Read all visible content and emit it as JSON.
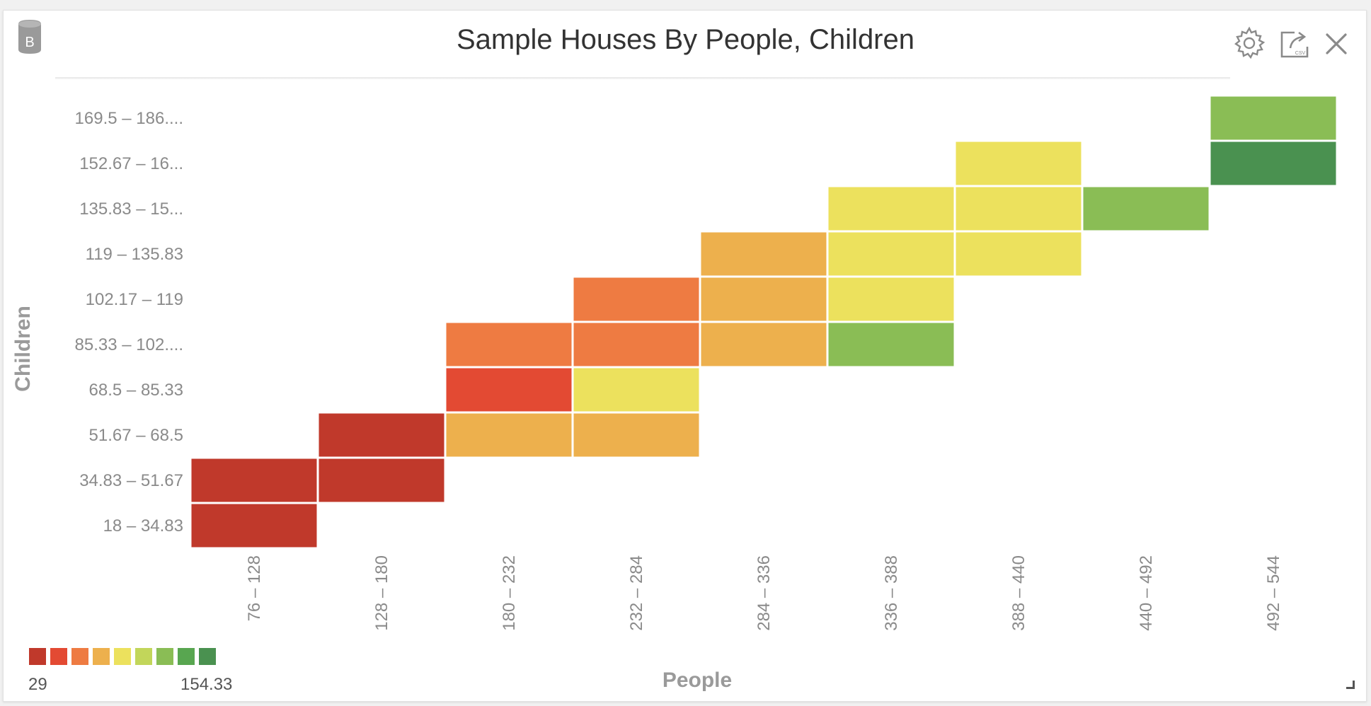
{
  "header": {
    "title": "Sample Houses By People, Children",
    "db_badge_letter": "B",
    "icons": [
      "database-icon",
      "gear-icon",
      "export-csv-icon",
      "close-icon"
    ],
    "export_badge": "CSV"
  },
  "chart_data": {
    "type": "heatmap",
    "title": "Sample Houses By People, Children",
    "xlabel": "People",
    "ylabel": "Children",
    "x_categories": [
      "76 – 128",
      "128 – 180",
      "180 – 232",
      "232 – 284",
      "284 – 336",
      "336 – 388",
      "388 – 440",
      "440 – 492",
      "492 – 544"
    ],
    "y_categories": [
      "18 – 34.83",
      "34.83 – 51.67",
      "51.67 – 68.5",
      "68.5 – 85.33",
      "85.33 – 102....",
      "102.17 – 119",
      "119 – 135.83",
      "135.83 – 15...",
      "152.67 – 16...",
      "169.5 – 186...."
    ],
    "cells": [
      {
        "x": 0,
        "y": 0,
        "value": 29
      },
      {
        "x": 0,
        "y": 1,
        "value": 30
      },
      {
        "x": 1,
        "y": 1,
        "value": 31
      },
      {
        "x": 1,
        "y": 2,
        "value": 32
      },
      {
        "x": 2,
        "y": 2,
        "value": 70
      },
      {
        "x": 3,
        "y": 2,
        "value": 70
      },
      {
        "x": 2,
        "y": 3,
        "value": 43
      },
      {
        "x": 3,
        "y": 3,
        "value": 84
      },
      {
        "x": 2,
        "y": 4,
        "value": 57
      },
      {
        "x": 3,
        "y": 4,
        "value": 57
      },
      {
        "x": 4,
        "y": 4,
        "value": 70
      },
      {
        "x": 5,
        "y": 4,
        "value": 126
      },
      {
        "x": 3,
        "y": 5,
        "value": 57
      },
      {
        "x": 4,
        "y": 5,
        "value": 70
      },
      {
        "x": 5,
        "y": 5,
        "value": 84
      },
      {
        "x": 4,
        "y": 6,
        "value": 70
      },
      {
        "x": 5,
        "y": 6,
        "value": 84
      },
      {
        "x": 6,
        "y": 6,
        "value": 98
      },
      {
        "x": 5,
        "y": 7,
        "value": 98
      },
      {
        "x": 6,
        "y": 7,
        "value": 98
      },
      {
        "x": 7,
        "y": 7,
        "value": 126
      },
      {
        "x": 6,
        "y": 8,
        "value": 98
      },
      {
        "x": 8,
        "y": 8,
        "value": 154.33
      },
      {
        "x": 8,
        "y": 9,
        "value": 126
      }
    ],
    "color_scale": [
      "#c0392b",
      "#e34a33",
      "#ee7b42",
      "#edb04d",
      "#ece15d",
      "#c2d65a",
      "#8abd55",
      "#58a650",
      "#4a9150"
    ],
    "legend": {
      "min": "29",
      "max": "154.33",
      "placement": "bottom-left"
    },
    "grid": false
  }
}
